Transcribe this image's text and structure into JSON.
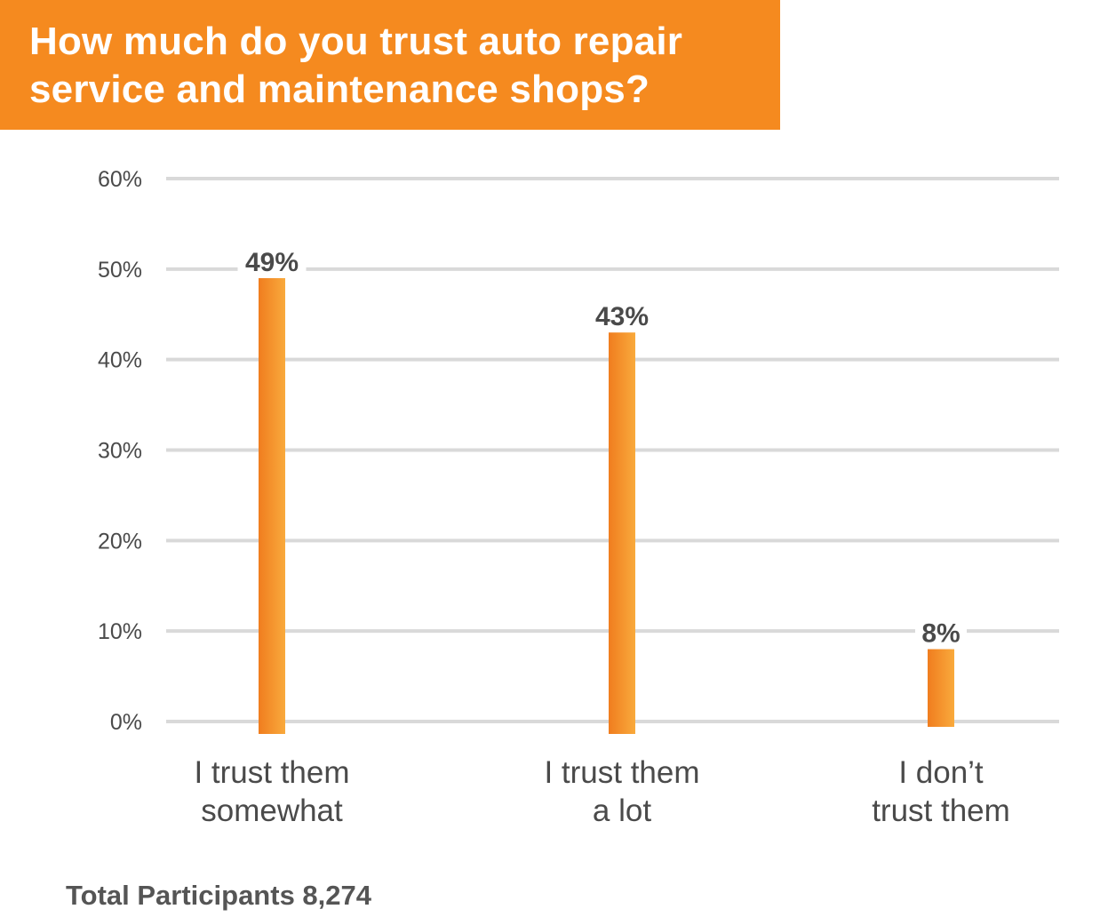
{
  "title": {
    "line1": "How much do you trust auto repair",
    "line2": "service and maintenance shops?"
  },
  "colors": {
    "banner": "#f58a1f",
    "bar_dark": "#f07d1f",
    "bar_light": "#f9aa3c",
    "grid": "#d9d9d9",
    "text": "#4a4a4a"
  },
  "chart_data": {
    "type": "bar",
    "title": "How much do you trust auto repair service and maintenance shops?",
    "categories": [
      [
        "I trust them",
        "somewhat"
      ],
      [
        "I trust them",
        "a lot"
      ],
      [
        "I don’t",
        "trust them"
      ]
    ],
    "values": [
      49,
      43,
      8
    ],
    "data_labels": [
      "49%",
      "43%",
      "8%"
    ],
    "y_ticks": [
      "0%",
      "10%",
      "20%",
      "30%",
      "40%",
      "50%",
      "60%"
    ],
    "ylim": [
      0,
      60
    ],
    "unit": "%",
    "grid": true,
    "legend": "none"
  },
  "footer": {
    "text": "Total Participants 8,274"
  }
}
